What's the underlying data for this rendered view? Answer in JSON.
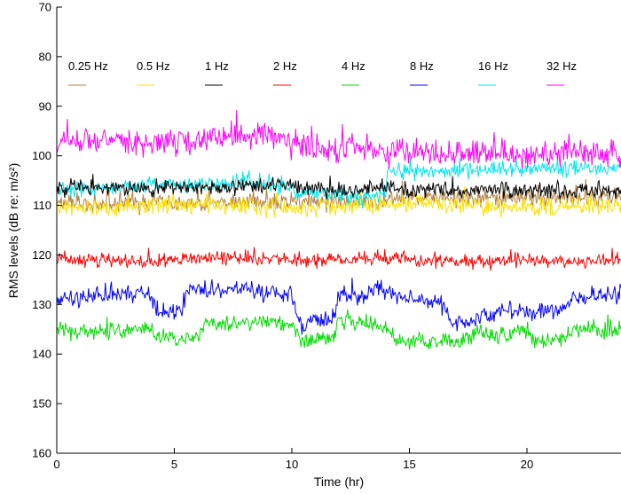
{
  "chart_data": {
    "type": "line",
    "title": "",
    "xlabel": "Time (hr)",
    "ylabel": "RMS levels (dB re: m/s²)",
    "xlim": [
      0,
      24
    ],
    "ylim": [
      70,
      160
    ],
    "y_reversed": true,
    "xticks": [
      0,
      5,
      10,
      15,
      20
    ],
    "yticks": [
      70,
      80,
      90,
      100,
      110,
      120,
      130,
      140,
      150,
      160
    ],
    "legend_placement": "top, horizontal row",
    "series": [
      {
        "name": "0.25 Hz",
        "color": "#b08040",
        "noise": 0.9,
        "x": [
          0,
          1,
          2,
          3,
          4,
          5,
          6,
          7,
          8,
          9,
          10,
          11,
          12,
          13,
          14,
          15,
          16,
          17,
          18,
          19,
          20,
          21,
          22,
          23,
          24
        ],
        "y": [
          109.5,
          109.5,
          109.5,
          109.5,
          109.5,
          109.5,
          109.5,
          109.5,
          109.5,
          109.5,
          109.5,
          109.5,
          109.5,
          109.5,
          109,
          108.5,
          108.5,
          108.5,
          108.5,
          108.5,
          108.5,
          108.5,
          108.5,
          108.5,
          108.5
        ]
      },
      {
        "name": "0.5 Hz",
        "color": "#ffe000",
        "noise": 0.9,
        "x": [
          0,
          2,
          4,
          6,
          8,
          10,
          12,
          14,
          16,
          18,
          20,
          22,
          24
        ],
        "y": [
          110,
          110.5,
          110,
          110,
          110,
          110.5,
          110,
          110,
          109.5,
          110,
          110.5,
          110.5,
          110
        ]
      },
      {
        "name": "1 Hz",
        "color": "#000000",
        "noise": 0.8,
        "x": [
          0,
          2,
          4,
          6,
          8,
          10,
          12,
          14,
          16,
          18,
          20,
          22,
          24
        ],
        "y": [
          106.5,
          106.5,
          106.5,
          106.5,
          106,
          106,
          107,
          106.5,
          107,
          107,
          107,
          107,
          107
        ]
      },
      {
        "name": "2 Hz",
        "color": "#ff0000",
        "noise": 0.7,
        "x": [
          0,
          2,
          4,
          6,
          8,
          10,
          12,
          14,
          16,
          18,
          20,
          22,
          24
        ],
        "y": [
          120.5,
          121,
          121.5,
          120.5,
          120.5,
          121,
          121,
          120.5,
          121,
          121.5,
          121,
          121.5,
          121
        ]
      },
      {
        "name": "4 Hz",
        "color": "#00dd00",
        "noise": 0.8,
        "x": [
          0,
          2,
          4,
          4.3,
          6,
          6.3,
          9,
          10,
          10.4,
          11.8,
          12,
          13.5,
          14.3,
          14.8,
          17,
          18,
          19,
          20,
          20.2,
          21.4,
          22,
          23,
          24
        ],
        "y": [
          135,
          135.5,
          135,
          137,
          137,
          134,
          133.5,
          134,
          137.5,
          136.5,
          133.5,
          133.5,
          136,
          137.5,
          137.5,
          136,
          136,
          135,
          137.5,
          137,
          135,
          135,
          135
        ]
      },
      {
        "name": "8 Hz",
        "color": "#0000ff",
        "noise": 0.9,
        "x": [
          0,
          1,
          2,
          3,
          4,
          4.3,
          5.3,
          5.5,
          7,
          8,
          9,
          10,
          10.3,
          11.8,
          12,
          13,
          13.5,
          14.3,
          15,
          16.3,
          16.8,
          18,
          19,
          20,
          21.3,
          22,
          23,
          24
        ],
        "y": [
          129,
          129,
          128,
          128,
          128,
          131.5,
          131.5,
          127,
          127,
          126.5,
          127.5,
          127.5,
          134,
          133,
          128,
          128.5,
          126.5,
          127.5,
          129,
          129.5,
          134,
          133,
          131.5,
          131.5,
          131.5,
          128.5,
          128.5,
          128
        ]
      },
      {
        "name": "16 Hz",
        "color": "#00e5ee",
        "noise": 0.8,
        "x": [
          0,
          2,
          4,
          6,
          7.5,
          8.5,
          9.5,
          10.5,
          12,
          13,
          14,
          14.05,
          16,
          18,
          20,
          22,
          24
        ],
        "y": [
          106.5,
          106.5,
          106,
          106,
          105.5,
          105,
          106,
          107.5,
          108,
          108.5,
          107.5,
          103.2,
          103,
          102.5,
          102.5,
          102.5,
          102.5
        ]
      },
      {
        "name": "32 Hz",
        "color": "#ff00ff",
        "noise": 1.3,
        "x": [
          0,
          2,
          4,
          6,
          7.5,
          8.5,
          9.5,
          10.5,
          12,
          13,
          14,
          15,
          16,
          18,
          20,
          22,
          24
        ],
        "y": [
          97,
          97,
          97.5,
          97,
          95.5,
          96,
          97,
          98,
          98.5,
          98.5,
          99,
          99,
          99.5,
          99.5,
          99.5,
          99.5,
          99.5
        ]
      }
    ]
  }
}
